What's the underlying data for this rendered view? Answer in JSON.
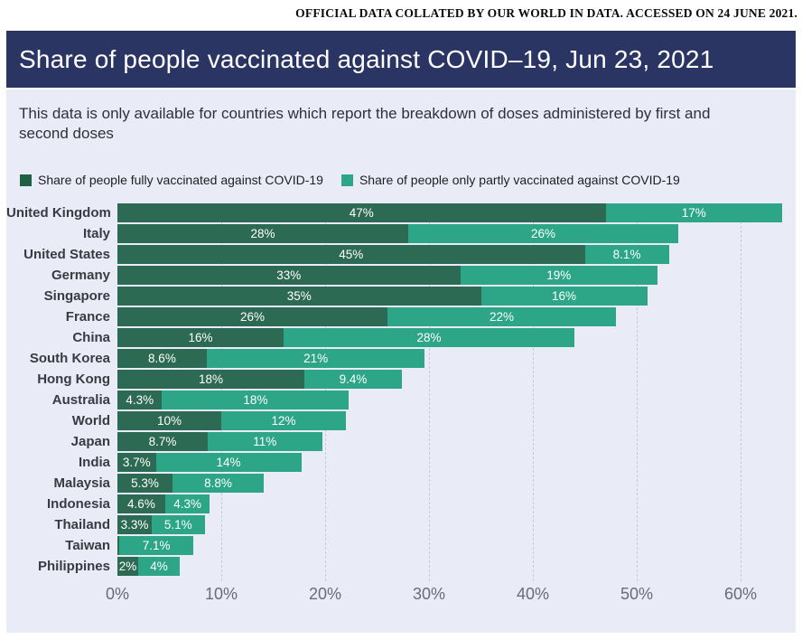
{
  "caption": "OFFICIAL DATA COLLATED BY OUR WORLD IN DATA. ACCESSED ON 24 JUNE 2021.",
  "header": {
    "title": "Share of people vaccinated against COVID–19, Jun 23, 2021",
    "background_color": "#2B3564"
  },
  "subtitle": "This data is only available for countries which report the breakdown of doses administered by first and second doses",
  "legend": [
    {
      "label": "Share of people fully vaccinated against COVID-19",
      "color": "#1D6044"
    },
    {
      "label": "Share of people only partly vaccinated against COVID-19",
      "color": "#2DA687"
    }
  ],
  "colors": {
    "panel_background": "#E9EBF6",
    "fully_bar": "#2D6A53",
    "partly_bar": "#2DA687",
    "gridline": "#c7cbd9",
    "axis_text": "#6b6b76",
    "country_text": "#3a3a42"
  },
  "chart_data": {
    "type": "bar",
    "stacked": true,
    "orientation": "horizontal",
    "title": "Share of people vaccinated against COVID-19, Jun 23, 2021",
    "xlabel": "",
    "ylabel": "",
    "xlim": [
      0,
      65.4
    ],
    "grid": "dashed-vertical",
    "legend_position": "top",
    "x_ticks": [
      "0%",
      "10%",
      "20%",
      "30%",
      "40%",
      "50%",
      "60%"
    ],
    "categories": [
      "United Kingdom",
      "Italy",
      "United States",
      "Germany",
      "Singapore",
      "France",
      "China",
      "South Korea",
      "Hong Kong",
      "Australia",
      "World",
      "Japan",
      "India",
      "Malaysia",
      "Indonesia",
      "Thailand",
      "Taiwan",
      "Philippines"
    ],
    "series": [
      {
        "name": "Share of people fully vaccinated against COVID-19",
        "color": "#2D6A53",
        "values": [
          47,
          28,
          45,
          33,
          35,
          26,
          16,
          8.6,
          18,
          4.3,
          10,
          8.7,
          3.7,
          5.3,
          4.6,
          3.3,
          0.2,
          2
        ],
        "labels": [
          "47%",
          "28%",
          "45%",
          "33%",
          "35%",
          "26%",
          "16%",
          "8.6%",
          "18%",
          "4.3%",
          "10%",
          "8.7%",
          "3.7%",
          "5.3%",
          "4.6%",
          "3.3%",
          "",
          "2%"
        ]
      },
      {
        "name": "Share of people only partly vaccinated against COVID-19",
        "color": "#2DA687",
        "values": [
          17,
          26,
          8.1,
          19,
          16,
          22,
          28,
          21,
          9.4,
          18,
          12,
          11,
          14,
          8.8,
          4.3,
          5.1,
          7.1,
          4
        ],
        "labels": [
          "17%",
          "26%",
          "8.1%",
          "19%",
          "16%",
          "22%",
          "28%",
          "21%",
          "9.4%",
          "18%",
          "12%",
          "11%",
          "14%",
          "8.8%",
          "4.3%",
          "5.1%",
          "7.1%",
          "4%"
        ]
      }
    ]
  }
}
